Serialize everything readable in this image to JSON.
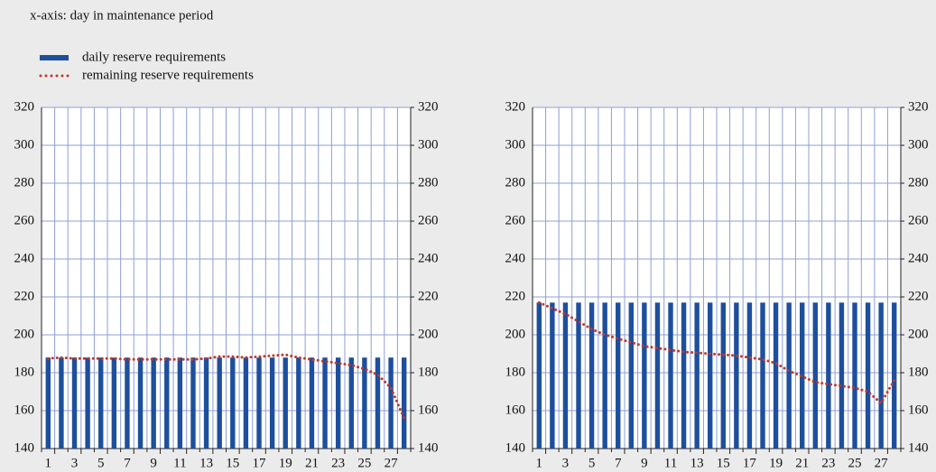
{
  "annotation": "x-axis: day in maintenance period",
  "chart_data": [
    {
      "type": "bar",
      "categories": [
        "1",
        null,
        "3",
        null,
        "5",
        null,
        "7",
        null,
        "9",
        null,
        "11",
        null,
        "13",
        null,
        "15",
        null,
        "17",
        null,
        "19",
        null,
        "21",
        null,
        "23",
        null,
        "25",
        null,
        "27",
        null
      ],
      "series": [
        {
          "name": "daily reserve requirements",
          "type": "bar",
          "color": "#1d4f9c",
          "values": [
            188,
            188,
            188,
            188,
            188,
            188,
            188,
            188,
            188,
            188,
            188,
            188,
            188,
            188,
            188,
            188,
            188,
            188,
            188,
            188,
            188,
            188,
            188,
            188,
            188,
            188,
            188,
            188
          ]
        },
        {
          "name": "remaining reserve requirements",
          "type": "line",
          "color": "#c0392b",
          "values": [
            187.5,
            188,
            187.5,
            187.5,
            187.5,
            187.5,
            187,
            187,
            187,
            187,
            187,
            187,
            187.5,
            188.5,
            188.5,
            188,
            188.5,
            189,
            189.5,
            188,
            187,
            186,
            185,
            184,
            182,
            179,
            172,
            156
          ]
        }
      ],
      "ylim": [
        140,
        320
      ],
      "yticks": [
        140,
        160,
        180,
        200,
        220,
        240,
        260,
        280,
        300,
        320
      ],
      "y2lim": [
        140,
        320
      ],
      "y2ticks": [
        140,
        160,
        180,
        200,
        220,
        240,
        260,
        280,
        300,
        320
      ],
      "grid": true
    },
    {
      "type": "bar",
      "categories": [
        "1",
        null,
        "3",
        null,
        "5",
        null,
        "7",
        null,
        "9",
        null,
        "11",
        null,
        "13",
        null,
        "15",
        null,
        "17",
        null,
        "19",
        null,
        "21",
        null,
        "23",
        null,
        "25",
        null,
        "27",
        null
      ],
      "series": [
        {
          "name": "daily reserve requirements",
          "type": "bar",
          "color": "#1d4f9c",
          "values": [
            217,
            217,
            217,
            217,
            217,
            217,
            217,
            217,
            217,
            217,
            217,
            217,
            217,
            217,
            217,
            217,
            217,
            217,
            217,
            217,
            217,
            217,
            217,
            217,
            217,
            217,
            217,
            217
          ]
        },
        {
          "name": "remaining reserve requirements",
          "type": "line",
          "color": "#c0392b",
          "values": [
            217,
            214,
            211,
            207,
            203,
            200,
            198,
            196,
            194,
            193,
            192,
            191,
            190.5,
            190,
            189.5,
            189,
            188,
            187,
            185,
            181,
            178,
            175,
            174,
            173,
            172,
            170,
            164,
            176
          ]
        }
      ],
      "ylim": [
        140,
        320
      ],
      "yticks": [
        140,
        160,
        180,
        200,
        220,
        240,
        260,
        280,
        300,
        320
      ],
      "y2lim": [
        140,
        320
      ],
      "y2ticks": [
        140,
        160,
        180,
        200,
        220,
        240,
        260,
        280,
        300,
        320
      ],
      "grid": true
    }
  ]
}
